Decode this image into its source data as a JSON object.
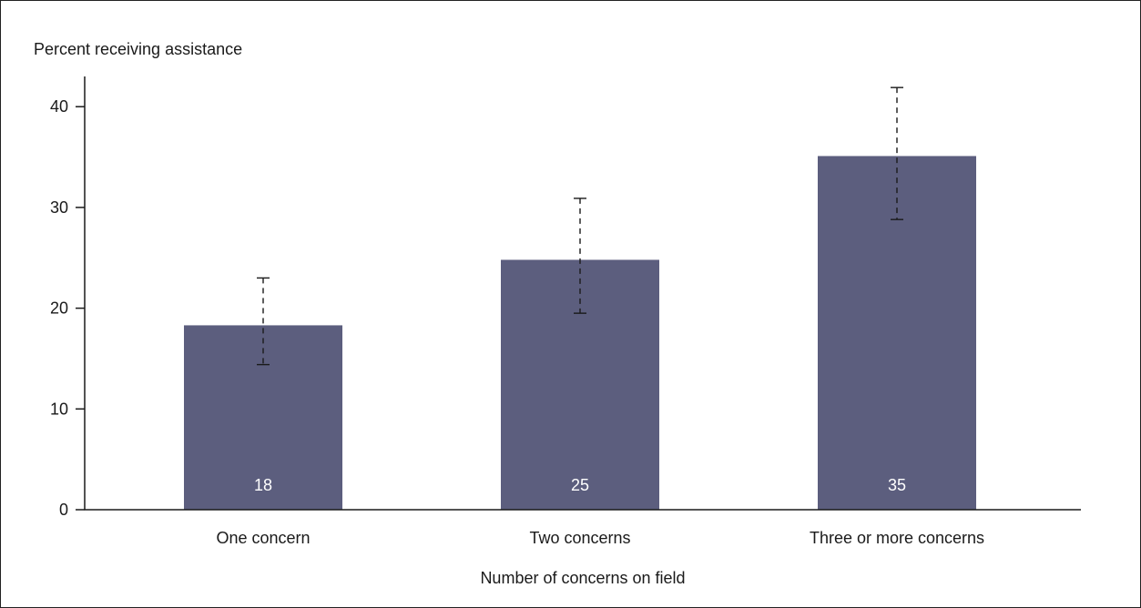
{
  "chart_data": {
    "type": "bar",
    "title": "",
    "ylabel": "Percent receiving assistance",
    "xlabel": "Number of concerns on field",
    "categories": [
      "One concern",
      "Two concerns",
      "Three or more concerns"
    ],
    "values": [
      18.3,
      24.8,
      35.1
    ],
    "value_labels": [
      "18",
      "25",
      "35"
    ],
    "error_bars": [
      {
        "low": 14.4,
        "high": 23.0
      },
      {
        "low": 19.5,
        "high": 30.9
      },
      {
        "low": 28.8,
        "high": 41.9
      }
    ],
    "ylim": [
      0,
      43
    ],
    "yticks": [
      0,
      10,
      20,
      30,
      40
    ],
    "grid": false,
    "legend": "none",
    "colors": {
      "bar": "#5c5e7e",
      "bar_label": "#ffffff",
      "axis": "#1a1a1a",
      "error_bar": "#1a1a1a"
    }
  }
}
